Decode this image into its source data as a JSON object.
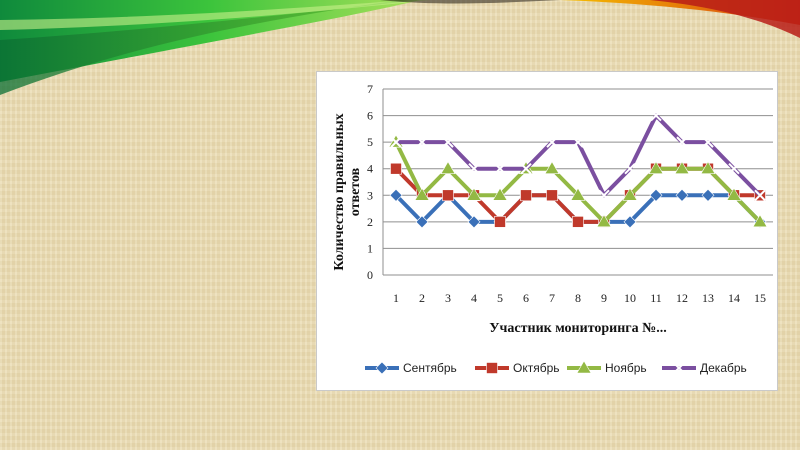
{
  "colors": {
    "background": "#eadcb3",
    "banner_green_dark": "#1a8f2a",
    "banner_green_light": "#7fdc3a",
    "banner_red": "#c8221e",
    "banner_orange": "#f4b400"
  },
  "chart_data": {
    "type": "line",
    "title": "",
    "xlabel": "Участник мониторинга №...",
    "ylabel": "Количество правильных ответов",
    "ylabel_lines": [
      "Количество правильных",
      "ответов"
    ],
    "x": [
      1,
      2,
      3,
      4,
      5,
      6,
      7,
      8,
      9,
      10,
      11,
      12,
      13,
      14,
      15
    ],
    "ylim": [
      0,
      7
    ],
    "yticks": [
      0,
      1,
      2,
      3,
      4,
      5,
      6,
      7
    ],
    "grid": "horizontal",
    "legend_position": "bottom",
    "series": [
      {
        "name": "Сентябрь",
        "color": "#3a70b8",
        "marker": "diamond",
        "values": [
          3,
          2,
          3,
          2,
          2,
          3,
          3,
          2,
          2,
          2,
          3,
          3,
          3,
          3,
          2
        ]
      },
      {
        "name": "Октябрь",
        "color": "#c0392b",
        "marker": "square",
        "values": [
          4,
          3,
          3,
          3,
          2,
          3,
          3,
          2,
          2,
          3,
          4,
          4,
          4,
          3,
          3
        ]
      },
      {
        "name": "Ноябрь",
        "color": "#93b944",
        "marker": "triangle",
        "values": [
          5,
          3,
          4,
          3,
          3,
          4,
          4,
          3,
          2,
          3,
          4,
          4,
          4,
          3,
          2
        ]
      },
      {
        "name": "Декабрь",
        "color": "#7b4fa0",
        "marker": "x",
        "values": [
          5,
          5,
          5,
          4,
          4,
          4,
          5,
          5,
          3,
          4,
          6,
          5,
          5,
          4,
          3
        ]
      }
    ]
  }
}
